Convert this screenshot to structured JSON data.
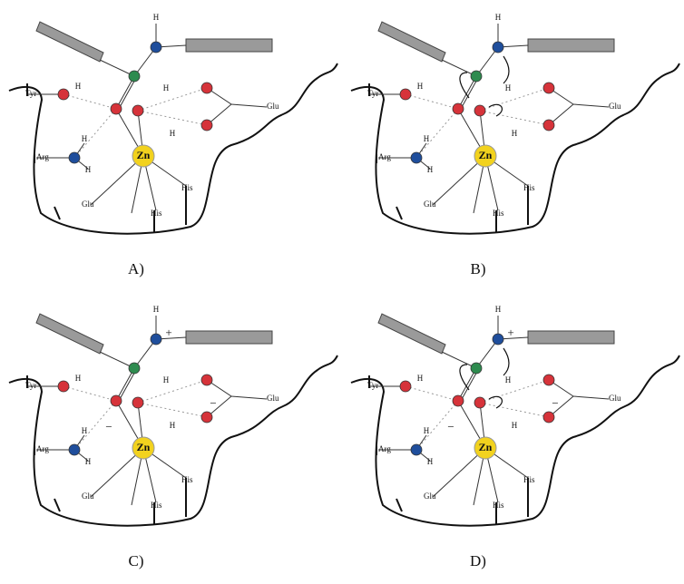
{
  "panels": [
    {
      "label": "A)",
      "metal": "Zn",
      "residues": {
        "tyr": "Tyr",
        "arg": "Arg",
        "glu_top": "Glu",
        "glu_bottom": "Glu",
        "his_left": "His",
        "his_right": "His"
      },
      "hydrogens": [
        "H",
        "H",
        "H",
        "H",
        "H",
        "H"
      ],
      "charges": []
    },
    {
      "label": "B)",
      "metal": "Zn",
      "residues": {
        "tyr": "Tyr",
        "arg": "Arg",
        "glu_top": "Glu",
        "glu_bottom": "Glu",
        "his_left": "His",
        "his_right": "His"
      },
      "hydrogens": [
        "H",
        "H",
        "H",
        "H",
        "H",
        "H"
      ],
      "charges": []
    },
    {
      "label": "C)",
      "metal": "Zn",
      "residues": {
        "tyr": "Tyr",
        "arg": "Arg",
        "glu_top": "Glu",
        "glu_bottom": "Glu",
        "his_left": "His",
        "his_right": "His"
      },
      "hydrogens": [
        "H",
        "H",
        "H",
        "H",
        "H",
        "H"
      ],
      "charges": [
        "+",
        "−",
        "−"
      ]
    },
    {
      "label": "D)",
      "metal": "Zn",
      "residues": {
        "tyr": "Tyr",
        "arg": "Arg",
        "glu_top": "Glu",
        "glu_bottom": "Glu",
        "his_left": "His",
        "his_right": "His"
      },
      "hydrogens": [
        "H",
        "H",
        "H",
        "H",
        "H",
        "H"
      ],
      "charges": [
        "+",
        "−",
        "−"
      ]
    }
  ]
}
